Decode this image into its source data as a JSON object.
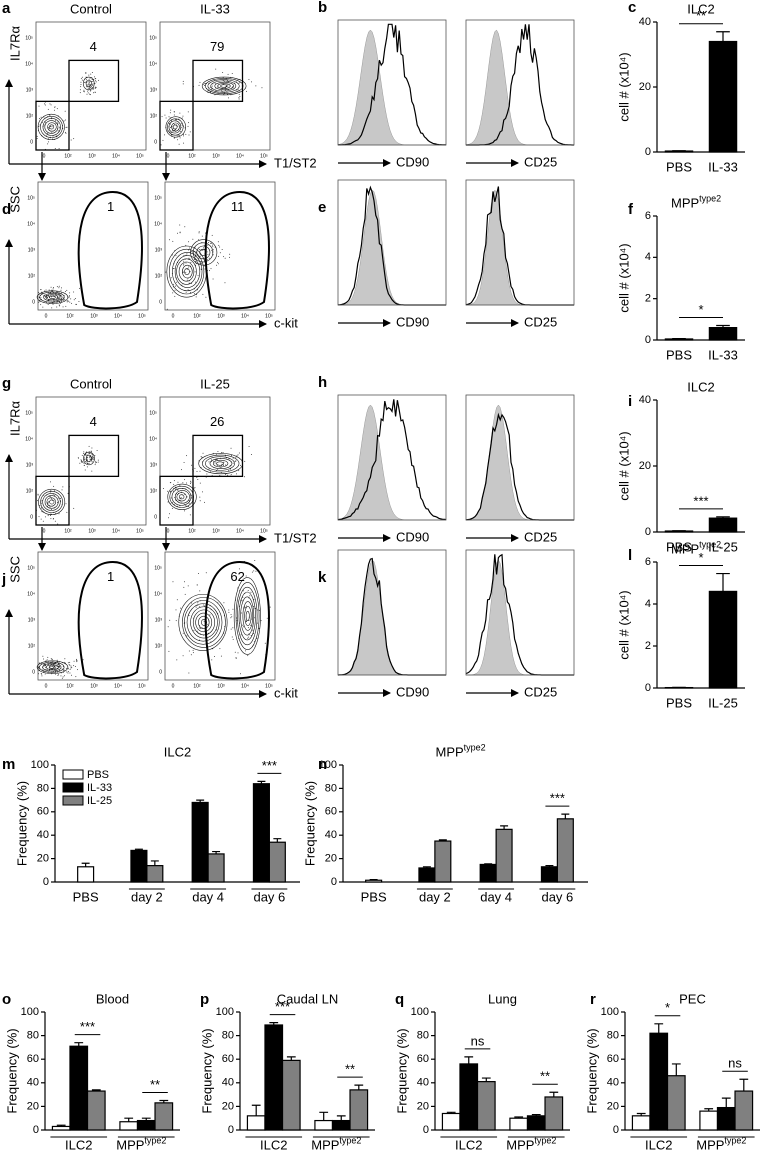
{
  "flow_ticks": [
    "0",
    "10²",
    "10³",
    "10⁴",
    "10⁵"
  ],
  "flow_rows": [
    {
      "letter": "a",
      "conditions": [
        "Control",
        "IL-33"
      ],
      "gates": [
        4,
        79
      ],
      "ylabel": "IL7Rα",
      "xlabel": "T1/ST2"
    },
    {
      "letter": "d",
      "gates": [
        1,
        11
      ],
      "ylabel": "SSC",
      "xlabel": "c-kit"
    },
    {
      "letter": "g",
      "conditions": [
        "Control",
        "IL-25"
      ],
      "gates": [
        4,
        26
      ],
      "ylabel": "IL7Rα",
      "xlabel": "T1/ST2"
    },
    {
      "letter": "j",
      "gates": [
        1,
        62
      ],
      "ylabel": "SSC",
      "xlabel": "c-kit"
    }
  ],
  "hist_rows": [
    {
      "letter": "b",
      "xlabels": [
        "CD90",
        "CD25"
      ]
    },
    {
      "letter": "e",
      "xlabels": [
        "CD90",
        "CD25"
      ]
    },
    {
      "letter": "h",
      "xlabels": [
        "CD90",
        "CD25"
      ]
    },
    {
      "letter": "k",
      "xlabels": [
        "CD90",
        "CD25"
      ]
    }
  ],
  "chart_data": [
    {
      "type": "bar",
      "letter": "c",
      "title": "ILC2",
      "ylabel": "cell # (x10⁴)",
      "categories": [
        "PBS",
        "IL-33"
      ],
      "values": [
        0.3,
        34
      ],
      "errors": [
        0.1,
        3
      ],
      "color": "#000000",
      "ylim": [
        0,
        40
      ],
      "yticks": [
        0,
        20,
        40
      ],
      "significance": "**"
    },
    {
      "type": "bar",
      "letter": "f",
      "title": "MPP",
      "title_sup": "type2",
      "ylabel": "cell # (x10⁴)",
      "categories": [
        "PBS",
        "IL-33"
      ],
      "values": [
        0.05,
        0.6
      ],
      "errors": [
        0.02,
        0.1
      ],
      "color": "#000000",
      "ylim": [
        0,
        6
      ],
      "yticks": [
        0,
        2,
        4,
        6
      ],
      "significance": "*"
    },
    {
      "type": "bar",
      "letter": "i",
      "title": "ILC2",
      "ylabel": "cell # (x10⁴)",
      "categories": [
        "PBS",
        "IL-25"
      ],
      "values": [
        0.3,
        4.2
      ],
      "errors": [
        0.1,
        0.4
      ],
      "color": "#000000",
      "ylim": [
        0,
        40
      ],
      "yticks": [
        0,
        20,
        40
      ],
      "significance": "***"
    },
    {
      "type": "bar",
      "letter": "l",
      "title": "MPP",
      "title_sup": "type2",
      "ylabel": "cell # (x10⁴)",
      "categories": [
        "PBS",
        "IL-25"
      ],
      "values": [
        0.02,
        4.6
      ],
      "errors": [
        0.01,
        0.85
      ],
      "color": "#000000",
      "ylim": [
        0,
        6
      ],
      "yticks": [
        0,
        2,
        4,
        6
      ],
      "significance": "*"
    },
    {
      "type": "bar",
      "letter": "m",
      "title": "ILC2",
      "ylabel": "Frequency (%)",
      "categories": [
        "PBS",
        "day 2",
        "day 4",
        "day 6"
      ],
      "series": [
        {
          "name": "PBS",
          "color": "#ffffff",
          "values": [
            13,
            null,
            null,
            null
          ],
          "errors": [
            3,
            null,
            null,
            null
          ]
        },
        {
          "name": "IL-33",
          "color": "#000000",
          "values": [
            null,
            27,
            68,
            84
          ],
          "errors": [
            null,
            1,
            2,
            2
          ]
        },
        {
          "name": "IL-25",
          "color": "#808080",
          "values": [
            null,
            14,
            24,
            34
          ],
          "errors": [
            null,
            4,
            2,
            3
          ]
        }
      ],
      "ylim": [
        0,
        100
      ],
      "yticks": [
        0,
        20,
        40,
        60,
        80,
        100
      ],
      "legend": true,
      "significance": [
        null,
        null,
        null,
        "***"
      ]
    },
    {
      "type": "bar",
      "letter": "n",
      "title": "MPP",
      "title_sup": "type2",
      "ylabel": "Frequency (%)",
      "categories": [
        "PBS",
        "day 2",
        "day 4",
        "day 6"
      ],
      "series": [
        {
          "color": "#ffffff",
          "values": [
            1.5,
            null,
            null,
            null
          ],
          "errors": [
            0.5,
            null,
            null,
            null
          ]
        },
        {
          "color": "#000000",
          "values": [
            null,
            12,
            15,
            13
          ],
          "errors": [
            null,
            1,
            0.5,
            1
          ]
        },
        {
          "color": "#808080",
          "values": [
            null,
            35,
            45,
            54
          ],
          "errors": [
            null,
            1,
            3,
            4
          ]
        }
      ],
      "ylim": [
        0,
        100
      ],
      "yticks": [
        0,
        20,
        40,
        60,
        80,
        100
      ],
      "significance": [
        null,
        null,
        null,
        "***"
      ]
    },
    {
      "type": "bar",
      "letter": "o",
      "title": "Blood",
      "ylabel": "Frequency (%)",
      "categories": [
        "ILC2",
        "MPP"
      ],
      "category_sups": [
        null,
        "type2"
      ],
      "series": [
        {
          "color": "#ffffff",
          "values": [
            3,
            7
          ],
          "errors": [
            1,
            3
          ]
        },
        {
          "color": "#000000",
          "values": [
            71,
            8
          ],
          "errors": [
            3,
            2
          ]
        },
        {
          "color": "#808080",
          "values": [
            33,
            23
          ],
          "errors": [
            1,
            2
          ]
        }
      ],
      "ylim": [
        0,
        100
      ],
      "yticks": [
        0,
        20,
        40,
        60,
        80,
        100
      ],
      "significance": [
        "***",
        "**"
      ]
    },
    {
      "type": "bar",
      "letter": "p",
      "title": "Caudal LN",
      "ylabel": "Frequency (%)",
      "categories": [
        "ILC2",
        "MPP"
      ],
      "category_sups": [
        null,
        "type2"
      ],
      "series": [
        {
          "color": "#ffffff",
          "values": [
            12,
            8
          ],
          "errors": [
            9,
            7
          ]
        },
        {
          "color": "#000000",
          "values": [
            89,
            8
          ],
          "errors": [
            2,
            4
          ]
        },
        {
          "color": "#808080",
          "values": [
            59,
            34
          ],
          "errors": [
            3,
            4
          ]
        }
      ],
      "ylim": [
        0,
        100
      ],
      "yticks": [
        0,
        20,
        40,
        60,
        80,
        100
      ],
      "significance": [
        "***",
        "**"
      ]
    },
    {
      "type": "bar",
      "letter": "q",
      "title": "Lung",
      "ylabel": "Frequency (%)",
      "categories": [
        "ILC2",
        "MPP"
      ],
      "category_sups": [
        null,
        "type2"
      ],
      "series": [
        {
          "color": "#ffffff",
          "values": [
            14,
            10
          ],
          "errors": [
            1,
            1
          ]
        },
        {
          "color": "#000000",
          "values": [
            56,
            12
          ],
          "errors": [
            6,
            1
          ]
        },
        {
          "color": "#808080",
          "values": [
            41,
            28
          ],
          "errors": [
            3,
            4
          ]
        }
      ],
      "ylim": [
        0,
        100
      ],
      "yticks": [
        0,
        20,
        40,
        60,
        80,
        100
      ],
      "significance": [
        "ns",
        "**"
      ]
    },
    {
      "type": "bar",
      "letter": "r",
      "title": "PEC",
      "ylabel": "Frequency (%)",
      "categories": [
        "ILC2",
        "MPP"
      ],
      "category_sups": [
        null,
        "type2"
      ],
      "series": [
        {
          "color": "#ffffff",
          "values": [
            12,
            16
          ],
          "errors": [
            2,
            2
          ]
        },
        {
          "color": "#000000",
          "values": [
            82,
            19
          ],
          "errors": [
            8,
            8
          ]
        },
        {
          "color": "#808080",
          "values": [
            46,
            33
          ],
          "errors": [
            10,
            10
          ]
        }
      ],
      "ylim": [
        0,
        100
      ],
      "yticks": [
        0,
        20,
        40,
        60,
        80,
        100
      ],
      "significance": [
        "*",
        "ns"
      ]
    }
  ]
}
